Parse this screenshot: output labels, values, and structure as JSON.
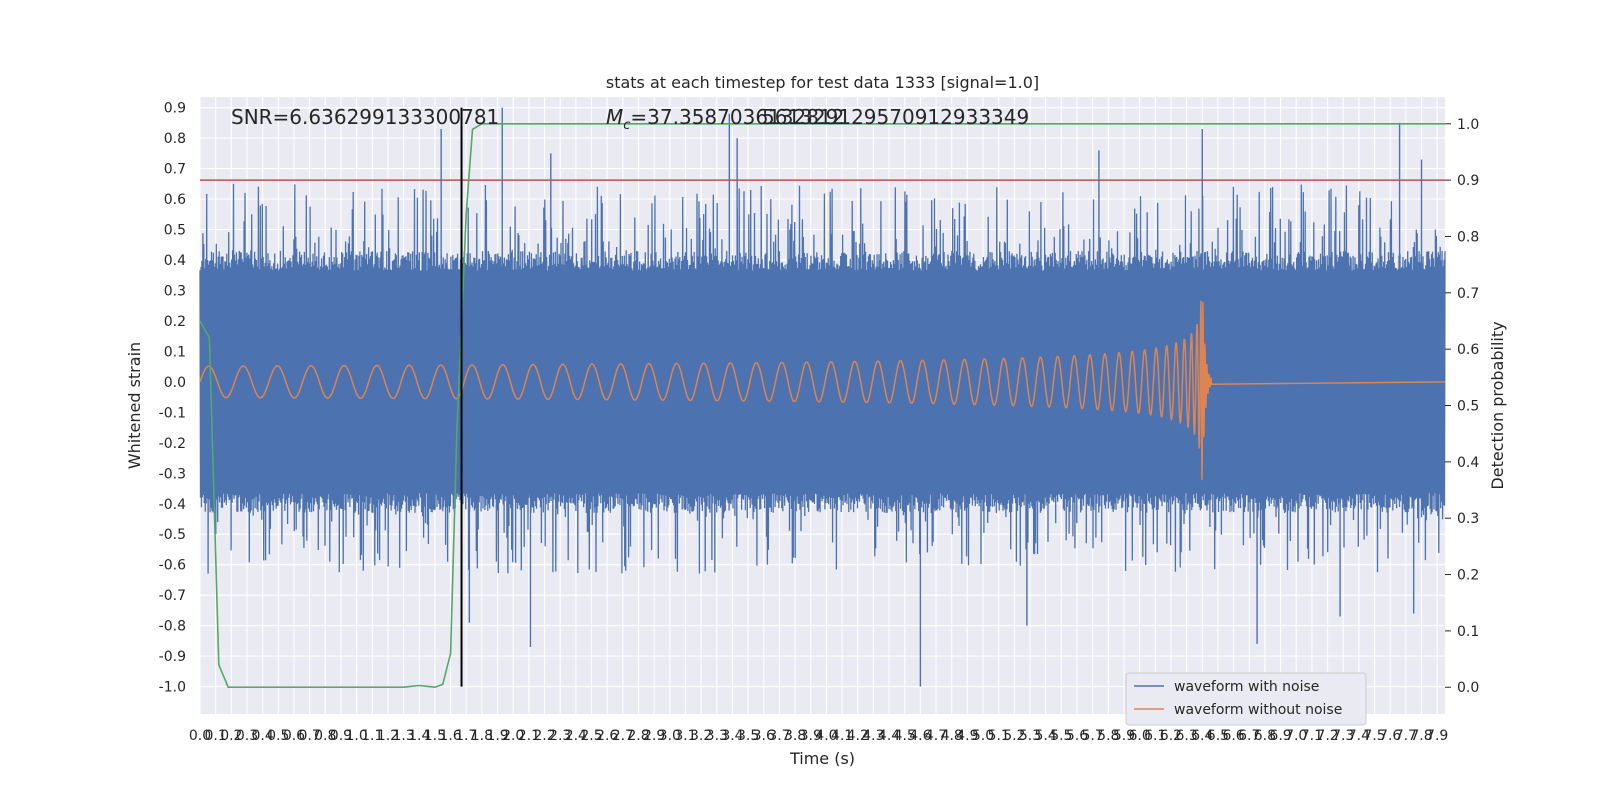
{
  "chart_data": {
    "type": "line",
    "title": "stats at each timestep for test data 1333 [signal=1.0]",
    "xlabel": "Time (s)",
    "ylabel": "Whitened strain",
    "y2label": "Detection probability",
    "xlim": [
      0.0,
      7.95
    ],
    "ylim": [
      -1.09,
      0.935
    ],
    "y2lim": [
      -0.0475,
      1.0475
    ],
    "grid": true,
    "x_ticks": [
      "0.0",
      "0.1",
      "0.2",
      "0.3",
      "0.4",
      "0.5",
      "0.6",
      "0.7",
      "0.8",
      "0.9",
      "1.0",
      "1.1",
      "1.2",
      "1.3",
      "1.4",
      "1.5",
      "1.6",
      "1.7",
      "1.8",
      "1.9",
      "2.0",
      "2.1",
      "2.2",
      "2.3",
      "2.4",
      "2.5",
      "2.6",
      "2.7",
      "2.8",
      "2.9",
      "3.0",
      "3.1",
      "3.2",
      "3.3",
      "3.4",
      "3.5",
      "3.6",
      "3.7",
      "3.8",
      "3.9",
      "4.0",
      "4.1",
      "4.2",
      "4.3",
      "4.4",
      "4.5",
      "4.6",
      "4.7",
      "4.8",
      "4.9",
      "5.0",
      "5.1",
      "5.2",
      "5.3",
      "5.4",
      "5.5",
      "5.6",
      "5.7",
      "5.8",
      "5.9",
      "6.0",
      "6.1",
      "6.2",
      "6.3",
      "6.4",
      "6.5",
      "6.6",
      "6.7",
      "6.8",
      "6.9",
      "7.0",
      "7.1",
      "7.2",
      "7.3",
      "7.4",
      "7.5",
      "7.6",
      "7.7",
      "7.8",
      "7.9"
    ],
    "y_ticks": [
      "0.9",
      "0.8",
      "0.7",
      "0.6",
      "0.5",
      "0.4",
      "0.3",
      "0.2",
      "0.1",
      "0.0",
      "-0.1",
      "-0.2",
      "-0.3",
      "-0.4",
      "-0.5",
      "-0.6",
      "-0.7",
      "-0.8",
      "-0.9",
      "-1.0"
    ],
    "y2_ticks": [
      "1.0",
      "0.9",
      "0.8",
      "0.7",
      "0.6",
      "0.5",
      "0.4",
      "0.3",
      "0.2",
      "0.1",
      "0.0"
    ],
    "annotations": {
      "snr": "SNR=6.636299133300781",
      "mc": "M",
      "mc_sub": "c",
      "mc_value": "=37.3587036132812",
      "overlap": "561329129570912933349"
    },
    "lines": {
      "threshold_probability": 0.9,
      "detection_time": 1.67
    },
    "series": [
      {
        "name": "waveform with noise",
        "color": "#4c72b0",
        "kind": "noise",
        "core_band": [
          -0.43,
          0.43
        ],
        "notable_peaks": [
          {
            "x": 1.54,
            "y": 0.83
          },
          {
            "x": 1.93,
            "y": 0.9
          },
          {
            "x": 2.24,
            "y": 0.75
          },
          {
            "x": 3.38,
            "y": 0.88
          },
          {
            "x": 3.43,
            "y": 0.8
          },
          {
            "x": 5.74,
            "y": 0.76
          },
          {
            "x": 6.4,
            "y": 0.83
          },
          {
            "x": 7.66,
            "y": 0.85
          },
          {
            "x": 7.8,
            "y": 0.73
          }
        ],
        "notable_troughs": [
          {
            "x": 1.72,
            "y": -0.79
          },
          {
            "x": 2.11,
            "y": -0.87
          },
          {
            "x": 4.6,
            "y": -1.0
          },
          {
            "x": 5.28,
            "y": -0.8
          },
          {
            "x": 6.75,
            "y": -0.86
          },
          {
            "x": 7.28,
            "y": -0.77
          },
          {
            "x": 7.75,
            "y": -0.76
          }
        ]
      },
      {
        "name": "waveform without noise",
        "color": "#dd8452",
        "kind": "chirp",
        "merger_time": 6.4,
        "peak_amplitude": 0.35
      },
      {
        "name": "detection probability",
        "color": "#55a868",
        "axis": "right",
        "x": [
          0.0,
          0.06,
          0.12,
          0.18,
          0.3,
          0.5,
          0.8,
          1.0,
          1.2,
          1.3,
          1.4,
          1.5,
          1.55,
          1.6,
          1.64,
          1.7,
          1.74,
          1.8,
          2.0,
          3.0,
          4.0,
          5.0,
          6.0,
          7.0,
          7.95
        ],
        "values": [
          0.65,
          0.62,
          0.04,
          0.0,
          0.0,
          0.0,
          0.0,
          0.0,
          0.0,
          0.0,
          0.003,
          0.0,
          0.005,
          0.06,
          0.45,
          0.84,
          0.99,
          1.0,
          1.0,
          1.0,
          1.0,
          1.0,
          1.0,
          1.0,
          1.0
        ]
      },
      {
        "name": "threshold",
        "color": "#c44e52",
        "axis": "right"
      },
      {
        "name": "detection time",
        "color": "#000000"
      }
    ],
    "legend_entries": [
      "waveform with noise",
      "waveform without noise"
    ]
  }
}
